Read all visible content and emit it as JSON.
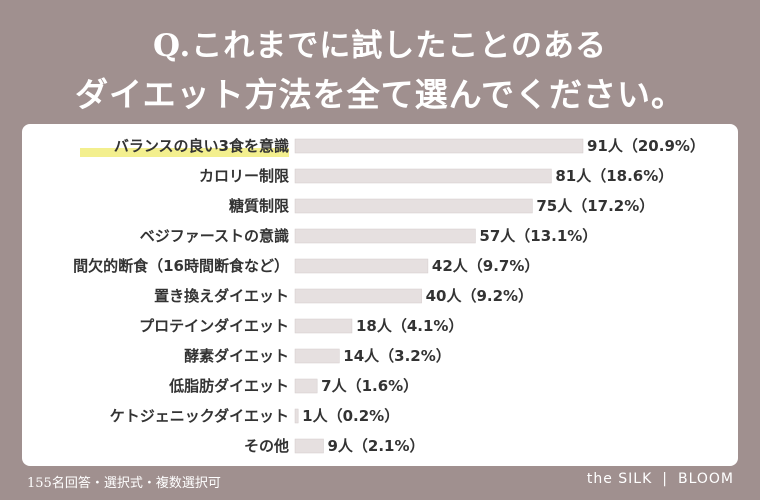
{
  "title_line1": "Q.これまでに試したことのある",
  "title_line2": "ダイエット方法を全て選んでください。",
  "footer_note": "155名回答・選択式・複数選択可",
  "brand_left": "the SILK",
  "brand_sep": "|",
  "brand_right": "BLOOM",
  "colors": {
    "background": "#a0908f",
    "bar": "#e6e0e0",
    "highlight": "#f3ef8e"
  },
  "chart_data": {
    "type": "bar",
    "orientation": "horizontal",
    "categories": [
      "バランスの良い3食を意識",
      "カロリー制限",
      "糖質制限",
      "ベジファーストの意識",
      "間欠的断食（16時間断食など）",
      "置き換えダイエット",
      "プロテインダイエット",
      "酵素ダイエット",
      "低脂肪ダイエット",
      "ケトジェニックダイエット",
      "その他"
    ],
    "values": [
      91,
      81,
      75,
      57,
      42,
      40,
      18,
      14,
      7,
      1,
      9
    ],
    "value_labels": [
      "91人（20.9%）",
      "81人（18.6%）",
      "75人（17.2%）",
      "57人（13.1%）",
      "42人（9.7%）",
      "40人（9.2%）",
      "18人（4.1%）",
      "14人（3.2%）",
      "7人（1.6%）",
      "1人（0.2%）",
      "9人（2.1%）"
    ],
    "highlighted_category": 0,
    "xlim": [
      0,
      91
    ]
  }
}
